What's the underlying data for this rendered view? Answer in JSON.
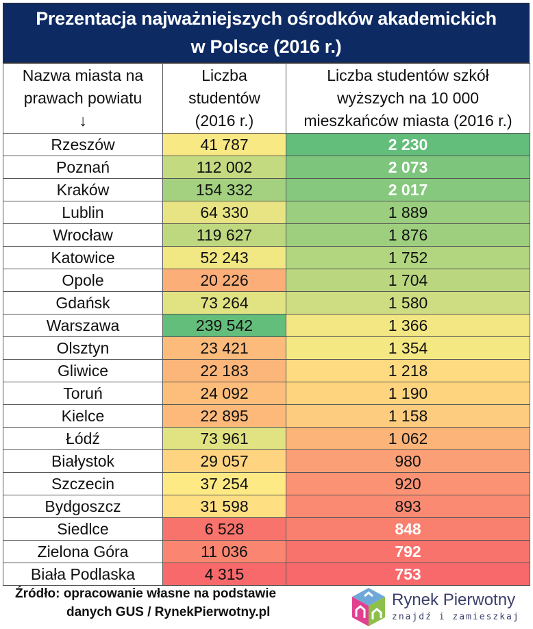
{
  "title_line1": "Prezentacja najważniejszych ośrodków akademickich",
  "title_line2": "w Polsce (2016 r.)",
  "headers": {
    "city": [
      "Nazwa miasta na",
      "prawach powiatu",
      "↓"
    ],
    "students": [
      "Liczba",
      "studentów",
      "(2016 r.)"
    ],
    "per10k": [
      "Liczba studentów szkół",
      "wyższych na 10 000",
      "mieszkańców miasta (2016 r.)"
    ]
  },
  "scale_colors": {
    "low": "#F8696B",
    "mid": "#FFEB84",
    "high": "#63BE7B"
  },
  "rows": [
    {
      "city": "Rzeszów",
      "students": "41 787",
      "per10k": "2 230"
    },
    {
      "city": "Poznań",
      "students": "112 002",
      "per10k": "2 073"
    },
    {
      "city": "Kraków",
      "students": "154 332",
      "per10k": "2 017"
    },
    {
      "city": "Lublin",
      "students": "64 330",
      "per10k": "1 889"
    },
    {
      "city": "Wrocław",
      "students": "119 627",
      "per10k": "1 876"
    },
    {
      "city": "Katowice",
      "students": "52 243",
      "per10k": "1 752"
    },
    {
      "city": "Opole",
      "students": "20 226",
      "per10k": "1 704"
    },
    {
      "city": "Gdańsk",
      "students": "73 264",
      "per10k": "1 580"
    },
    {
      "city": "Warszawa",
      "students": "239 542",
      "per10k": "1 366"
    },
    {
      "city": "Olsztyn",
      "students": "23 421",
      "per10k": "1 354"
    },
    {
      "city": "Gliwice",
      "students": "22 183",
      "per10k": "1 218"
    },
    {
      "city": "Toruń",
      "students": "24 092",
      "per10k": "1 190"
    },
    {
      "city": "Kielce",
      "students": "22 895",
      "per10k": "1 158"
    },
    {
      "city": "Łódź",
      "students": "73 961",
      "per10k": "1 062"
    },
    {
      "city": "Białystok",
      "students": "29 057",
      "per10k": "980"
    },
    {
      "city": "Szczecin",
      "students": "37 254",
      "per10k": "920"
    },
    {
      "city": "Bydgoszcz",
      "students": "31 598",
      "per10k": "893"
    },
    {
      "city": "Siedlce",
      "students": "6 528",
      "per10k": "848"
    },
    {
      "city": "Zielona Góra",
      "students": "11 036",
      "per10k": "792"
    },
    {
      "city": "Biała Podlaska",
      "students": "4 315",
      "per10k": "753"
    }
  ],
  "source_line1": "Źródło: opracowanie własne na podstawie",
  "source_line2": "danych GUS / RynekPierwotny.pl",
  "logo": {
    "name": "Rynek Pierwotny",
    "tagline": "znajdź i zamieszkaj"
  }
}
